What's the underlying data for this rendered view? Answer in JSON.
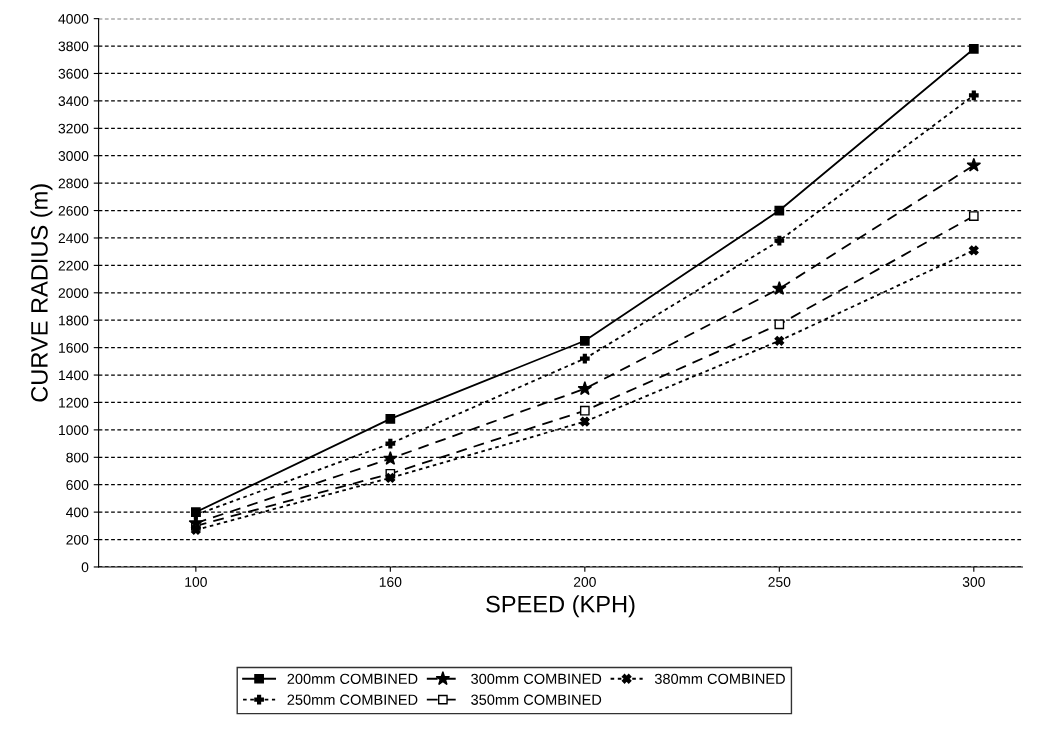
{
  "chart_data": {
    "type": "line",
    "xlabel": "SPEED (KPH)",
    "ylabel": "CURVE RADIUS (m)",
    "categories": [
      "100",
      "160",
      "200",
      "250",
      "300"
    ],
    "ylim": [
      0,
      4000
    ],
    "yticks": [
      0,
      200,
      400,
      600,
      800,
      1000,
      1200,
      1400,
      1600,
      1800,
      2000,
      2200,
      2400,
      2600,
      2800,
      3000,
      3200,
      3400,
      3600,
      3800,
      4000
    ],
    "grid": "y",
    "legend": "bottom",
    "series": [
      {
        "name": "200mm COMBINED",
        "color": "#000000",
        "marker": "square",
        "line_style": "solid",
        "values": [
          400,
          1080,
          1650,
          2600,
          3780
        ]
      },
      {
        "name": "250mm COMBINED",
        "color": "#000000",
        "marker": "cross",
        "line_style": "dotted",
        "values": [
          380,
          900,
          1520,
          2380,
          3440
        ]
      },
      {
        "name": "300mm COMBINED",
        "color": "#000000",
        "marker": "star",
        "line_style": "dashed",
        "values": [
          320,
          790,
          1300,
          2030,
          2930
        ]
      },
      {
        "name": "350mm COMBINED",
        "color": "#000000",
        "marker": "square_open",
        "line_style": "dashed",
        "values": [
          300,
          680,
          1140,
          1770,
          2560
        ]
      },
      {
        "name": "380mm COMBINED",
        "color": "#000000",
        "marker": "x",
        "line_style": "dotted",
        "values": [
          270,
          650,
          1060,
          1650,
          2310
        ]
      }
    ]
  }
}
